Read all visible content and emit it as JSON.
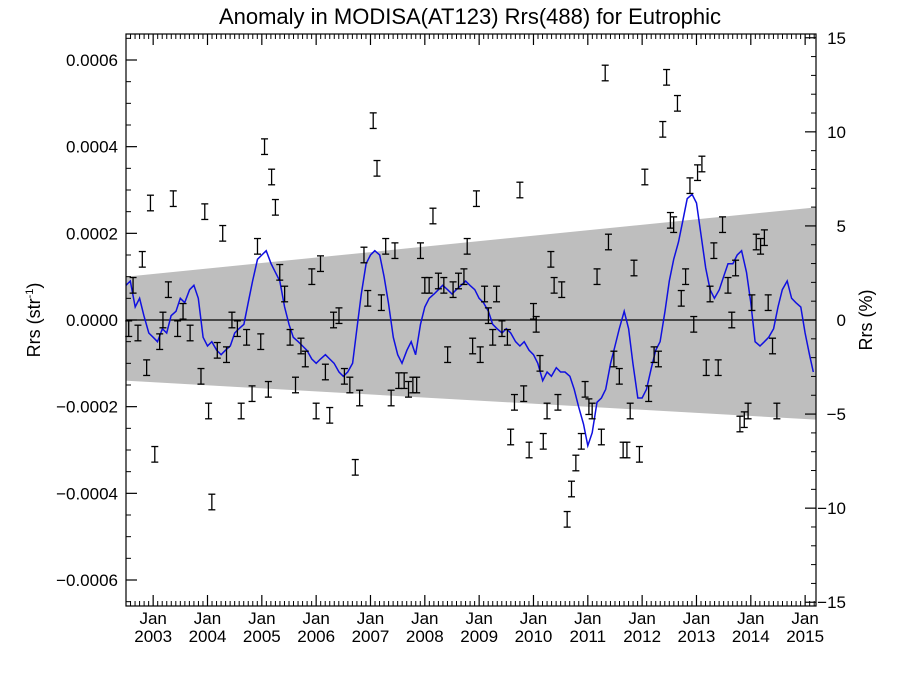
{
  "chart_data": {
    "type": "scatter",
    "title": "Anomaly in MODISA(AT123) Rrs(488) for Eutrophic",
    "ylabel_left": "Rrs (str",
    "ylabel_left_sup": "-1",
    "ylabel_left_end": ")",
    "ylabel_right": "Rrs (%)",
    "xlabel": "",
    "xlim": [
      2002.5,
      2015.2
    ],
    "ylim": [
      -0.00066,
      0.00066
    ],
    "y2lim": [
      -15.2,
      15.2
    ],
    "yticks": [
      {
        "value": 0.0006,
        "label": "0.0006"
      },
      {
        "value": 0.0004,
        "label": "0.0004"
      },
      {
        "value": 0.0002,
        "label": "0.0002"
      },
      {
        "value": 0.0,
        "label": "0.0000"
      },
      {
        "value": -0.0002,
        "label": "−0.0002"
      },
      {
        "value": -0.0004,
        "label": "−0.0004"
      },
      {
        "value": -0.0006,
        "label": "−0.0006"
      }
    ],
    "y2ticks": [
      {
        "value": 15,
        "label": "15"
      },
      {
        "value": 10,
        "label": "10"
      },
      {
        "value": 5,
        "label": "5"
      },
      {
        "value": 0,
        "label": "0"
      },
      {
        "value": -5,
        "label": "−5"
      },
      {
        "value": -10,
        "label": "−10"
      },
      {
        "value": -15,
        "label": "−15"
      }
    ],
    "xticks": [
      {
        "value": 2003,
        "month": "Jan",
        "year": "2003"
      },
      {
        "value": 2004,
        "month": "Jan",
        "year": "2004"
      },
      {
        "value": 2005,
        "month": "Jan",
        "year": "2005"
      },
      {
        "value": 2006,
        "month": "Jan",
        "year": "2006"
      },
      {
        "value": 2007,
        "month": "Jan",
        "year": "2007"
      },
      {
        "value": 2008,
        "month": "Jan",
        "year": "2008"
      },
      {
        "value": 2009,
        "month": "Jan",
        "year": "2009"
      },
      {
        "value": 2010,
        "month": "Jan",
        "year": "2010"
      },
      {
        "value": 2011,
        "month": "Jan",
        "year": "2011"
      },
      {
        "value": 2012,
        "month": "Jan",
        "year": "2012"
      },
      {
        "value": 2013,
        "month": "Jan",
        "year": "2013"
      },
      {
        "value": 2014,
        "month": "Jan",
        "year": "2014"
      },
      {
        "value": 2015,
        "month": "Jan",
        "year": "2015"
      }
    ],
    "band": {
      "color": "#bebebe",
      "upper": [
        [
          2002.5,
          0.0001
        ],
        [
          2015.2,
          0.00026
        ]
      ],
      "lower": [
        [
          2002.5,
          -0.00014
        ],
        [
          2015.2,
          -0.00023
        ]
      ]
    },
    "zero_line": true,
    "grid": false,
    "line_color": "#1010e0",
    "smooth_line": [
      [
        2002.5,
        8e-05
      ],
      [
        2002.58,
        9e-05
      ],
      [
        2002.67,
        3e-05
      ],
      [
        2002.75,
        5e-05
      ],
      [
        2002.83,
        1e-05
      ],
      [
        2002.92,
        -3e-05
      ],
      [
        2003.0,
        -4e-05
      ],
      [
        2003.08,
        -5e-05
      ],
      [
        2003.17,
        -2e-05
      ],
      [
        2003.25,
        -3e-05
      ],
      [
        2003.33,
        1e-05
      ],
      [
        2003.42,
        2e-05
      ],
      [
        2003.5,
        5e-05
      ],
      [
        2003.58,
        4e-05
      ],
      [
        2003.67,
        7e-05
      ],
      [
        2003.75,
        8e-05
      ],
      [
        2003.83,
        5e-05
      ],
      [
        2003.92,
        -4e-05
      ],
      [
        2004.0,
        -6e-05
      ],
      [
        2004.08,
        -5e-05
      ],
      [
        2004.17,
        -7e-05
      ],
      [
        2004.25,
        -8e-05
      ],
      [
        2004.33,
        -7e-05
      ],
      [
        2004.42,
        -6e-05
      ],
      [
        2004.5,
        -3e-05
      ],
      [
        2004.58,
        -2e-05
      ],
      [
        2004.67,
        -1e-05
      ],
      [
        2004.75,
        4e-05
      ],
      [
        2004.83,
        9e-05
      ],
      [
        2004.92,
        0.00014
      ],
      [
        2005.0,
        0.00015
      ],
      [
        2005.08,
        0.00016
      ],
      [
        2005.17,
        0.00013
      ],
      [
        2005.25,
        0.00011
      ],
      [
        2005.33,
        9e-05
      ],
      [
        2005.42,
        3e-05
      ],
      [
        2005.5,
        -1e-05
      ],
      [
        2005.58,
        -4e-05
      ],
      [
        2005.67,
        -5e-05
      ],
      [
        2005.75,
        -6e-05
      ],
      [
        2005.83,
        -7e-05
      ],
      [
        2005.92,
        -9e-05
      ],
      [
        2006.0,
        -0.0001
      ],
      [
        2006.08,
        -9e-05
      ],
      [
        2006.17,
        -8e-05
      ],
      [
        2006.25,
        -9e-05
      ],
      [
        2006.33,
        -0.0001
      ],
      [
        2006.42,
        -0.00012
      ],
      [
        2006.5,
        -0.00013
      ],
      [
        2006.58,
        -0.00012
      ],
      [
        2006.67,
        -0.0001
      ],
      [
        2006.75,
        -2e-05
      ],
      [
        2006.83,
        6e-05
      ],
      [
        2006.92,
        0.00013
      ],
      [
        2007.0,
        0.00015
      ],
      [
        2007.08,
        0.00016
      ],
      [
        2007.17,
        0.00015
      ],
      [
        2007.25,
        0.0001
      ],
      [
        2007.33,
        4e-05
      ],
      [
        2007.42,
        -4e-05
      ],
      [
        2007.5,
        -8e-05
      ],
      [
        2007.58,
        -0.0001
      ],
      [
        2007.67,
        -7e-05
      ],
      [
        2007.75,
        -5e-05
      ],
      [
        2007.83,
        -8e-05
      ],
      [
        2007.92,
        -1e-05
      ],
      [
        2008.0,
        3e-05
      ],
      [
        2008.08,
        5e-05
      ],
      [
        2008.17,
        6e-05
      ],
      [
        2008.25,
        7e-05
      ],
      [
        2008.33,
        8e-05
      ],
      [
        2008.42,
        7e-05
      ],
      [
        2008.5,
        6e-05
      ],
      [
        2008.58,
        7e-05
      ],
      [
        2008.67,
        8e-05
      ],
      [
        2008.75,
        9e-05
      ],
      [
        2008.83,
        8e-05
      ],
      [
        2008.92,
        7e-05
      ],
      [
        2009.0,
        5e-05
      ],
      [
        2009.08,
        4e-05
      ],
      [
        2009.17,
        2e-05
      ],
      [
        2009.25,
        -1e-05
      ],
      [
        2009.33,
        -2e-05
      ],
      [
        2009.42,
        -3e-05
      ],
      [
        2009.5,
        -2e-05
      ],
      [
        2009.58,
        -3e-05
      ],
      [
        2009.67,
        -5e-05
      ],
      [
        2009.75,
        -6e-05
      ],
      [
        2009.83,
        -5e-05
      ],
      [
        2009.92,
        -7e-05
      ],
      [
        2010.0,
        -8e-05
      ],
      [
        2010.08,
        -0.0001
      ],
      [
        2010.17,
        -0.00014
      ],
      [
        2010.25,
        -0.00012
      ],
      [
        2010.33,
        -0.00013
      ],
      [
        2010.42,
        -0.00011
      ],
      [
        2010.5,
        -0.00012
      ],
      [
        2010.58,
        -0.00012
      ],
      [
        2010.67,
        -0.00013
      ],
      [
        2010.75,
        -0.00016
      ],
      [
        2010.83,
        -0.0002
      ],
      [
        2010.92,
        -0.00024
      ],
      [
        2011.0,
        -0.00029
      ],
      [
        2011.08,
        -0.00026
      ],
      [
        2011.17,
        -0.00019
      ],
      [
        2011.25,
        -0.00018
      ],
      [
        2011.33,
        -0.00016
      ],
      [
        2011.42,
        -0.0001
      ],
      [
        2011.5,
        -6e-05
      ],
      [
        2011.58,
        -2e-05
      ],
      [
        2011.67,
        2e-05
      ],
      [
        2011.75,
        -2e-05
      ],
      [
        2011.83,
        -0.0001
      ],
      [
        2011.92,
        -0.00018
      ],
      [
        2012.0,
        -0.00018
      ],
      [
        2012.08,
        -0.00016
      ],
      [
        2012.17,
        -0.00011
      ],
      [
        2012.25,
        -7e-05
      ],
      [
        2012.33,
        -5e-05
      ],
      [
        2012.42,
        2e-05
      ],
      [
        2012.5,
        9e-05
      ],
      [
        2012.58,
        0.00014
      ],
      [
        2012.67,
        0.00018
      ],
      [
        2012.75,
        0.00023
      ],
      [
        2012.83,
        0.00028
      ],
      [
        2012.92,
        0.00029
      ],
      [
        2013.0,
        0.00027
      ],
      [
        2013.08,
        0.0002
      ],
      [
        2013.17,
        0.00012
      ],
      [
        2013.25,
        7e-05
      ],
      [
        2013.33,
        5e-05
      ],
      [
        2013.42,
        7e-05
      ],
      [
        2013.5,
        0.0001
      ],
      [
        2013.58,
        0.00013
      ],
      [
        2013.67,
        0.00013
      ],
      [
        2013.75,
        0.00015
      ],
      [
        2013.83,
        0.00016
      ],
      [
        2013.92,
        0.00011
      ],
      [
        2014.0,
        4e-05
      ],
      [
        2014.08,
        -5e-05
      ],
      [
        2014.17,
        -6e-05
      ],
      [
        2014.25,
        -5e-05
      ],
      [
        2014.33,
        -4e-05
      ],
      [
        2014.42,
        -2e-05
      ],
      [
        2014.5,
        3e-05
      ],
      [
        2014.58,
        7e-05
      ],
      [
        2014.67,
        9e-05
      ],
      [
        2014.75,
        5e-05
      ],
      [
        2014.83,
        4e-05
      ],
      [
        2014.92,
        3e-05
      ],
      [
        2015.0,
        -3e-05
      ],
      [
        2015.08,
        -8e-05
      ],
      [
        2015.15,
        -0.00012
      ]
    ],
    "error_bar_points": [
      [
        2002.55,
        -2e-05
      ],
      [
        2002.63,
        8e-05
      ],
      [
        2002.72,
        -3e-05
      ],
      [
        2002.8,
        0.00014
      ],
      [
        2002.88,
        -0.00011
      ],
      [
        2002.95,
        0.00027
      ],
      [
        2003.03,
        -0.00031
      ],
      [
        2003.12,
        -5e-05
      ],
      [
        2003.18,
        0.0
      ],
      [
        2003.28,
        7e-05
      ],
      [
        2003.37,
        0.00028
      ],
      [
        2003.45,
        -2e-05
      ],
      [
        2003.55,
        2e-05
      ],
      [
        2003.68,
        -3e-05
      ],
      [
        2003.88,
        -0.00013
      ],
      [
        2003.95,
        0.00025
      ],
      [
        2004.02,
        -0.00021
      ],
      [
        2004.08,
        -0.00042
      ],
      [
        2004.18,
        -7e-05
      ],
      [
        2004.28,
        0.0002
      ],
      [
        2004.35,
        -8e-05
      ],
      [
        2004.45,
        0.0
      ],
      [
        2004.55,
        -2e-05
      ],
      [
        2004.62,
        -0.00021
      ],
      [
        2004.72,
        -4e-05
      ],
      [
        2004.82,
        -0.00017
      ],
      [
        2004.92,
        0.00017
      ],
      [
        2004.98,
        -5e-05
      ],
      [
        2005.05,
        0.0004
      ],
      [
        2005.12,
        -0.00016
      ],
      [
        2005.18,
        0.00033
      ],
      [
        2005.25,
        0.00026
      ],
      [
        2005.33,
        0.00011
      ],
      [
        2005.42,
        6e-05
      ],
      [
        2005.52,
        -4e-05
      ],
      [
        2005.62,
        -0.00015
      ],
      [
        2005.72,
        -6e-05
      ],
      [
        2005.8,
        -9e-05
      ],
      [
        2005.92,
        0.0001
      ],
      [
        2006.0,
        -0.00021
      ],
      [
        2006.08,
        0.00013
      ],
      [
        2006.17,
        -0.00012
      ],
      [
        2006.25,
        -0.00022
      ],
      [
        2006.32,
        0.0
      ],
      [
        2006.42,
        1e-05
      ],
      [
        2006.52,
        -0.00013
      ],
      [
        2006.62,
        -0.00015
      ],
      [
        2006.72,
        -0.00034
      ],
      [
        2006.8,
        -0.00018
      ],
      [
        2006.88,
        0.00015
      ],
      [
        2006.95,
        5e-05
      ],
      [
        2007.05,
        0.00046
      ],
      [
        2007.12,
        0.00035
      ],
      [
        2007.2,
        4e-05
      ],
      [
        2007.28,
        0.00017
      ],
      [
        2007.38,
        -0.00018
      ],
      [
        2007.45,
        0.00016
      ],
      [
        2007.52,
        -0.00014
      ],
      [
        2007.62,
        -0.00014
      ],
      [
        2007.7,
        -0.00016
      ],
      [
        2007.78,
        -0.00015
      ],
      [
        2007.85,
        -0.00015
      ],
      [
        2007.92,
        0.00016
      ],
      [
        2008.0,
        8e-05
      ],
      [
        2008.08,
        8e-05
      ],
      [
        2008.15,
        0.00024
      ],
      [
        2008.25,
        9e-05
      ],
      [
        2008.35,
        8e-05
      ],
      [
        2008.42,
        -8e-05
      ],
      [
        2008.52,
        7e-05
      ],
      [
        2008.62,
        9e-05
      ],
      [
        2008.72,
        0.0001
      ],
      [
        2008.78,
        0.00017
      ],
      [
        2008.88,
        -6e-05
      ],
      [
        2008.95,
        0.00028
      ],
      [
        2009.02,
        -8e-05
      ],
      [
        2009.1,
        6e-05
      ],
      [
        2009.17,
        1e-05
      ],
      [
        2009.25,
        -4e-05
      ],
      [
        2009.32,
        6e-05
      ],
      [
        2009.42,
        -2e-05
      ],
      [
        2009.52,
        -4e-05
      ],
      [
        2009.58,
        -0.00027
      ],
      [
        2009.65,
        -0.00019
      ],
      [
        2009.75,
        0.0003
      ],
      [
        2009.82,
        -0.00017
      ],
      [
        2009.92,
        -0.0003
      ],
      [
        2010.0,
        2e-05
      ],
      [
        2010.05,
        -1e-05
      ],
      [
        2010.12,
        -0.0001
      ],
      [
        2010.18,
        -0.00028
      ],
      [
        2010.25,
        -0.00021
      ],
      [
        2010.32,
        0.00014
      ],
      [
        2010.38,
        8e-05
      ],
      [
        2010.45,
        -0.00019
      ],
      [
        2010.52,
        7e-05
      ],
      [
        2010.62,
        -0.00046
      ],
      [
        2010.7,
        -0.00039
      ],
      [
        2010.78,
        -0.00033
      ],
      [
        2010.88,
        -0.00028
      ],
      [
        2010.95,
        -0.00016
      ],
      [
        2011.02,
        -0.0002
      ],
      [
        2011.08,
        -0.00021
      ],
      [
        2011.17,
        0.0001
      ],
      [
        2011.25,
        -0.00027
      ],
      [
        2011.32,
        0.00057
      ],
      [
        2011.38,
        0.00018
      ],
      [
        2011.48,
        -9e-05
      ],
      [
        2011.58,
        -0.00013
      ],
      [
        2011.65,
        -0.0003
      ],
      [
        2011.72,
        -0.0003
      ],
      [
        2011.78,
        -0.00021
      ],
      [
        2011.85,
        0.00012
      ],
      [
        2011.95,
        -0.00031
      ],
      [
        2012.05,
        0.00033
      ],
      [
        2012.12,
        -0.00017
      ],
      [
        2012.22,
        -8e-05
      ],
      [
        2012.3,
        -9e-05
      ],
      [
        2012.38,
        0.00044
      ],
      [
        2012.45,
        0.00056
      ],
      [
        2012.52,
        0.00023
      ],
      [
        2012.58,
        0.00022
      ],
      [
        2012.65,
        0.0005
      ],
      [
        2012.72,
        5e-05
      ],
      [
        2012.8,
        0.0001
      ],
      [
        2012.88,
        0.00031
      ],
      [
        2012.95,
        -1e-05
      ],
      [
        2013.02,
        0.00034
      ],
      [
        2013.1,
        0.00036
      ],
      [
        2013.18,
        -0.00011
      ],
      [
        2013.25,
        6e-05
      ],
      [
        2013.32,
        0.00016
      ],
      [
        2013.4,
        -0.00011
      ],
      [
        2013.48,
        0.00022
      ],
      [
        2013.58,
        8e-05
      ],
      [
        2013.65,
        0.0
      ],
      [
        2013.72,
        0.00012
      ],
      [
        2013.8,
        -0.00024
      ],
      [
        2013.88,
        -0.00023
      ],
      [
        2013.95,
        -0.00021
      ],
      [
        2014.02,
        4e-05
      ],
      [
        2014.1,
        0.00018
      ],
      [
        2014.18,
        0.00017
      ],
      [
        2014.25,
        0.00019
      ],
      [
        2014.32,
        4e-05
      ],
      [
        2014.4,
        -6e-05
      ],
      [
        2014.48,
        -0.00021
      ]
    ],
    "error_bar_halfwidth": 1.8e-05
  }
}
